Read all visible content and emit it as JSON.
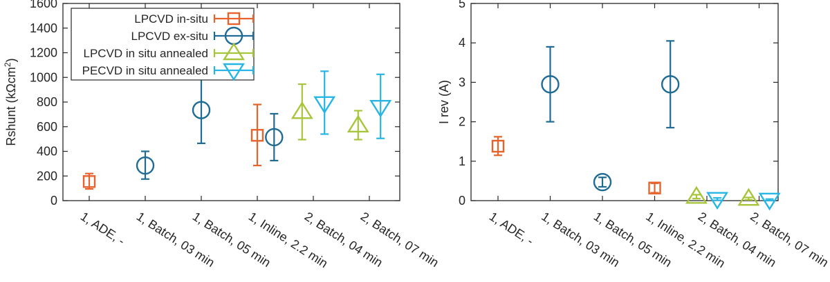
{
  "chart_data": [
    {
      "type": "scatter",
      "ylabel_main": "Rshunt (kΩcm",
      "ylabel_sup": "2",
      "ylabel_close": ")",
      "ylim": [
        0,
        1600
      ],
      "yticks": [
        0,
        200,
        400,
        600,
        800,
        1000,
        1200,
        1400,
        1600
      ],
      "categories": [
        "1, ADE, -",
        "1, Batch, 03 min",
        "1, Batch, 05 min",
        "1, Inline, 2.2 min",
        "2, Batch, 04 min",
        "2, Batch, 07 min"
      ],
      "legend": {
        "placement": "top-left"
      },
      "series": [
        {
          "name": "LPCVD in-situ",
          "marker": "square",
          "color": "#e8622c",
          "points": [
            {
              "x": 0,
              "y": 155,
              "lo": 95,
              "hi": 220
            },
            {
              "x": 3,
              "y": 530,
              "lo": 285,
              "hi": 780
            }
          ]
        },
        {
          "name": "LPCVD ex-situ",
          "marker": "circle",
          "color": "#1f6b93",
          "points": [
            {
              "x": 1,
              "y": 285,
              "lo": 175,
              "hi": 400
            },
            {
              "x": 2,
              "y": 735,
              "lo": 465,
              "hi": 1000
            },
            {
              "x": 3.3,
              "y": 515,
              "lo": 325,
              "hi": 705
            }
          ]
        },
        {
          "name": "LPCVD in situ annealed",
          "marker": "triangle-up",
          "color": "#a7c53a",
          "points": [
            {
              "x": 3.8,
              "y": 720,
              "lo": 495,
              "hi": 945
            },
            {
              "x": 4.8,
              "y": 610,
              "lo": 495,
              "hi": 730
            }
          ]
        },
        {
          "name": "PECVD in situ annealed",
          "marker": "triangle-down",
          "color": "#27b6e3",
          "points": [
            {
              "x": 4.2,
              "y": 790,
              "lo": 540,
              "hi": 1050
            },
            {
              "x": 5.2,
              "y": 760,
              "lo": 505,
              "hi": 1025
            }
          ]
        }
      ]
    },
    {
      "type": "scatter",
      "ylabel_main": "I rev  (A)",
      "ylim": [
        0,
        5
      ],
      "yticks": [
        0,
        1,
        2,
        3,
        4,
        5
      ],
      "categories": [
        "1, ADE, -",
        "1, Batch, 03 min",
        "1, Batch, 05 min",
        "1, Inline, 2.2 min",
        "2, Batch, 04 min",
        "2, Batch, 07 min"
      ],
      "series": [
        {
          "name": "LPCVD in-situ",
          "marker": "square",
          "color": "#e8622c",
          "points": [
            {
              "x": 0,
              "y": 1.38,
              "lo": 1.15,
              "hi": 1.62
            },
            {
              "x": 3,
              "y": 0.32,
              "lo": 0.2,
              "hi": 0.44
            }
          ]
        },
        {
          "name": "LPCVD ex-situ",
          "marker": "circle",
          "color": "#1f6b93",
          "points": [
            {
              "x": 1,
              "y": 2.95,
              "lo": 2.0,
              "hi": 3.9
            },
            {
              "x": 2,
              "y": 0.47,
              "lo": 0.35,
              "hi": 0.59
            },
            {
              "x": 3.3,
              "y": 2.95,
              "lo": 1.85,
              "hi": 4.05
            }
          ]
        },
        {
          "name": "LPCVD in situ annealed",
          "marker": "triangle-up",
          "color": "#a7c53a",
          "points": [
            {
              "x": 3.8,
              "y": 0.1,
              "lo": 0.05,
              "hi": 0.15
            },
            {
              "x": 4.8,
              "y": 0.05,
              "lo": 0.02,
              "hi": 0.08
            }
          ]
        },
        {
          "name": "PECVD in situ annealed",
          "marker": "triangle-down",
          "color": "#27b6e3",
          "points": [
            {
              "x": 4.2,
              "y": 0.04,
              "lo": 0.01,
              "hi": 0.07
            },
            {
              "x": 5.2,
              "y": 0.02,
              "lo": 0.0,
              "hi": 0.04
            }
          ]
        }
      ]
    }
  ]
}
